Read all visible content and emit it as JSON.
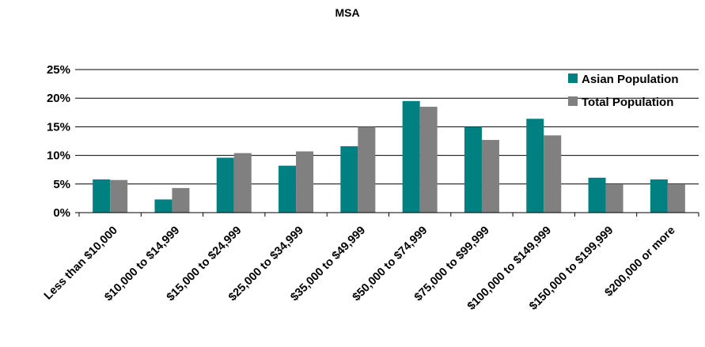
{
  "chart_data": {
    "type": "bar",
    "title": "MSA",
    "xlabel": "",
    "ylabel": "",
    "ylim": [
      0,
      25
    ],
    "y_ticks": [
      "0%",
      "5%",
      "10%",
      "15%",
      "20%",
      "25%"
    ],
    "grid": true,
    "legend_position": "right",
    "categories": [
      "Less than $10,000",
      "$10,000 to $14,999",
      "$15,000 to $24,999",
      "$25,000 to $34,999",
      "$35,000 to $49,999",
      "$50,000 to $74,999",
      "$75,000 to $99,999",
      "$100,000 to $149,999",
      "$150,000 to $199,999",
      "$200,000 or more"
    ],
    "series": [
      {
        "name": "Asian Population",
        "color": "#008080",
        "values": [
          5.8,
          2.3,
          9.6,
          8.2,
          11.6,
          19.5,
          15.0,
          16.4,
          6.1,
          5.8
        ]
      },
      {
        "name": "Total Population",
        "color": "#808080",
        "values": [
          5.7,
          4.3,
          10.4,
          10.7,
          15.0,
          18.5,
          12.7,
          13.5,
          4.9,
          4.9
        ]
      }
    ]
  }
}
